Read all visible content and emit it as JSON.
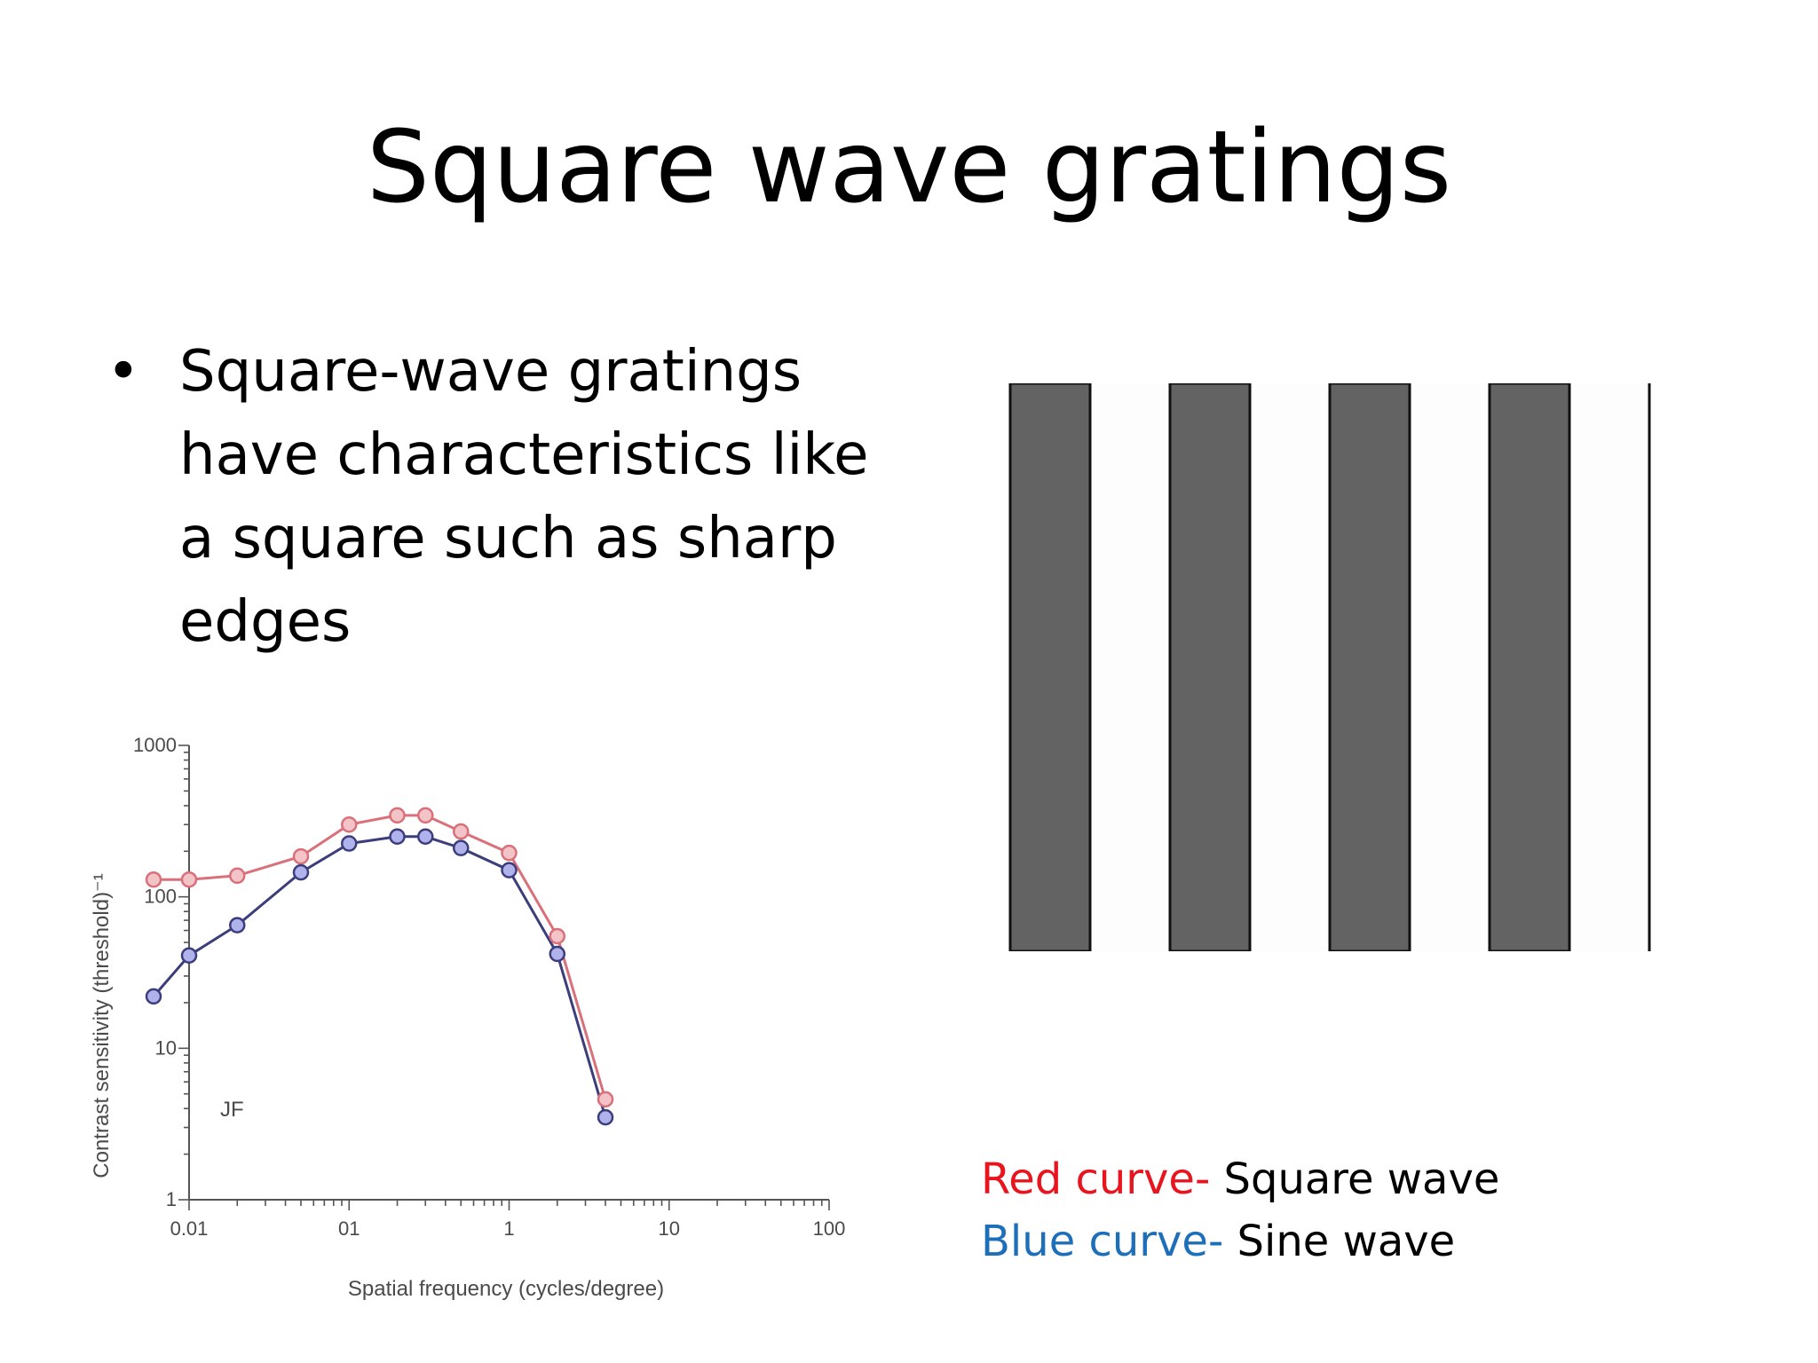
{
  "slide": {
    "title": "Square wave gratings",
    "bullet": "Square-wave gratings have characteristics like a square such as sharp edges"
  },
  "legend": {
    "red_key": "Red curve-",
    "red_value": "Square wave",
    "blue_key": "Blue curve-",
    "blue_value": "Sine wave",
    "red_color": "#e8141e",
    "blue_color": "#1e6fba"
  },
  "grating": {
    "dark_bar_count": 4,
    "dark_color": "#636363",
    "light_color": "#fdfdfd"
  },
  "chart_data": {
    "type": "line",
    "title": "",
    "xlabel": "Spatial frequency (cycles/degree)",
    "ylabel": "Contrast sensitivity (threshold)⁻¹",
    "x_scale": "log",
    "y_scale": "log",
    "xlim": [
      0.01,
      100
    ],
    "ylim": [
      1,
      1000
    ],
    "x_tick_labels": [
      "0.01",
      "01",
      "1",
      "10",
      "100"
    ],
    "y_tick_labels": [
      "1",
      "10",
      "100",
      "1000"
    ],
    "annotation": "JF",
    "grid": false,
    "series": [
      {
        "color": "#d9707a",
        "fill": "#f2c4c8",
        "x": [
          0.006,
          0.01,
          0.02,
          0.05,
          0.1,
          0.2,
          0.3,
          0.5,
          1,
          2,
          4
        ],
        "y": [
          130,
          130,
          138,
          185,
          300,
          345,
          345,
          270,
          195,
          55,
          4.6
        ]
      },
      {
        "color": "#3c3e7c",
        "fill": "#b0b2ec",
        "x": [
          0.006,
          0.01,
          0.02,
          0.05,
          0.1,
          0.2,
          0.3,
          0.5,
          1,
          2,
          4
        ],
        "y": [
          22,
          41,
          65,
          145,
          225,
          250,
          250,
          210,
          150,
          42,
          3.5
        ]
      }
    ]
  }
}
